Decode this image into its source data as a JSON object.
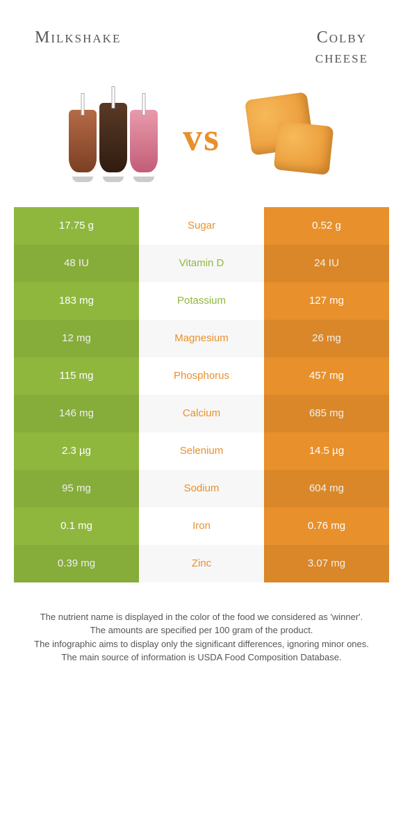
{
  "header": {
    "left_title": "Milkshake",
    "right_title_line1": "Colby",
    "right_title_line2": "cheese"
  },
  "vs": {
    "label": "vs"
  },
  "colors": {
    "left": "#8fb73e",
    "right": "#e8902c",
    "mid_bg": "#ffffff",
    "mid_bg_alt": "#f7f7f7"
  },
  "rows": [
    {
      "left": "17.75 g",
      "label": "Sugar",
      "right": "0.52 g",
      "winner": "right"
    },
    {
      "left": "48 IU",
      "label": "Vitamin D",
      "right": "24 IU",
      "winner": "left"
    },
    {
      "left": "183 mg",
      "label": "Potassium",
      "right": "127 mg",
      "winner": "left"
    },
    {
      "left": "12 mg",
      "label": "Magnesium",
      "right": "26 mg",
      "winner": "right"
    },
    {
      "left": "115 mg",
      "label": "Phosphorus",
      "right": "457 mg",
      "winner": "right"
    },
    {
      "left": "146 mg",
      "label": "Calcium",
      "right": "685 mg",
      "winner": "right"
    },
    {
      "left": "2.3 µg",
      "label": "Selenium",
      "right": "14.5 µg",
      "winner": "right"
    },
    {
      "left": "95 mg",
      "label": "Sodium",
      "right": "604 mg",
      "winner": "right"
    },
    {
      "left": "0.1 mg",
      "label": "Iron",
      "right": "0.76 mg",
      "winner": "right"
    },
    {
      "left": "0.39 mg",
      "label": "Zinc",
      "right": "3.07 mg",
      "winner": "right"
    }
  ],
  "footer": {
    "line1": "The nutrient name is displayed in the color of the food we considered as 'winner'.",
    "line2": "The amounts are specified per 100 gram of the product.",
    "line3": "The infographic aims to display only the significant differences, ignoring minor ones.",
    "line4": "The main source of information is USDA Food Composition Database."
  }
}
